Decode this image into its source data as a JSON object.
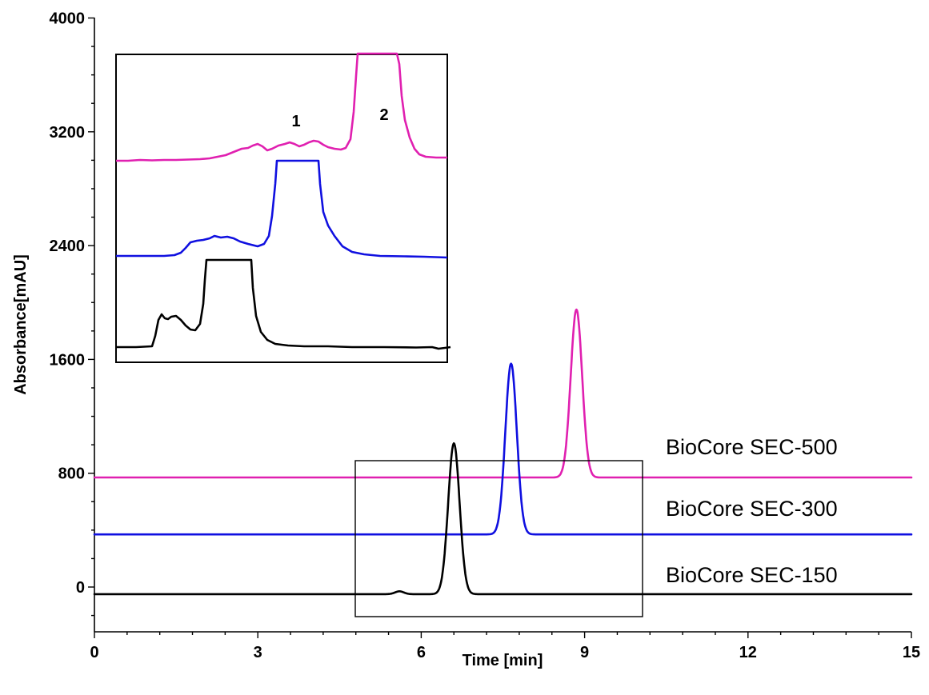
{
  "chart_data": {
    "type": "line",
    "title": "",
    "xlabel": "Time [min]",
    "ylabel": "Absorbance[mAU]",
    "xlim": [
      0,
      15
    ],
    "ylim": [
      -300,
      4000
    ],
    "x_ticks": [
      0,
      3,
      6,
      9,
      12,
      15
    ],
    "y_ticks": [
      0,
      800,
      1600,
      2400,
      3200,
      4000
    ],
    "x_tick_labels": [
      "0",
      "3",
      "6",
      "9",
      "12",
      "15"
    ],
    "y_tick_labels": [
      "0",
      "800",
      "1600",
      "2400",
      "3200",
      "4000"
    ],
    "grid": false,
    "legend": "labels beside traces (right)",
    "series": [
      {
        "name": "BioCore SEC-500",
        "color": "#e020b0",
        "baseline": 770,
        "peak_x": 8.85,
        "peak_y": 1950
      },
      {
        "name": "BioCore SEC-300",
        "color": "#1010e0",
        "baseline": 370,
        "peak_x": 7.65,
        "peak_y": 1570
      },
      {
        "name": "BioCore SEC-150",
        "color": "#000000",
        "baseline": -50,
        "peak_x": 6.6,
        "peak_y": 1010
      }
    ],
    "zoom_region": {
      "x": [
        4.8,
        10.05
      ],
      "y": [
        -200,
        900
      ]
    },
    "inset": {
      "description_labels": [
        "1",
        "2"
      ],
      "series_order_top_to_bottom": [
        "BioCore SEC-500",
        "BioCore SEC-300",
        "BioCore SEC-150"
      ]
    }
  }
}
